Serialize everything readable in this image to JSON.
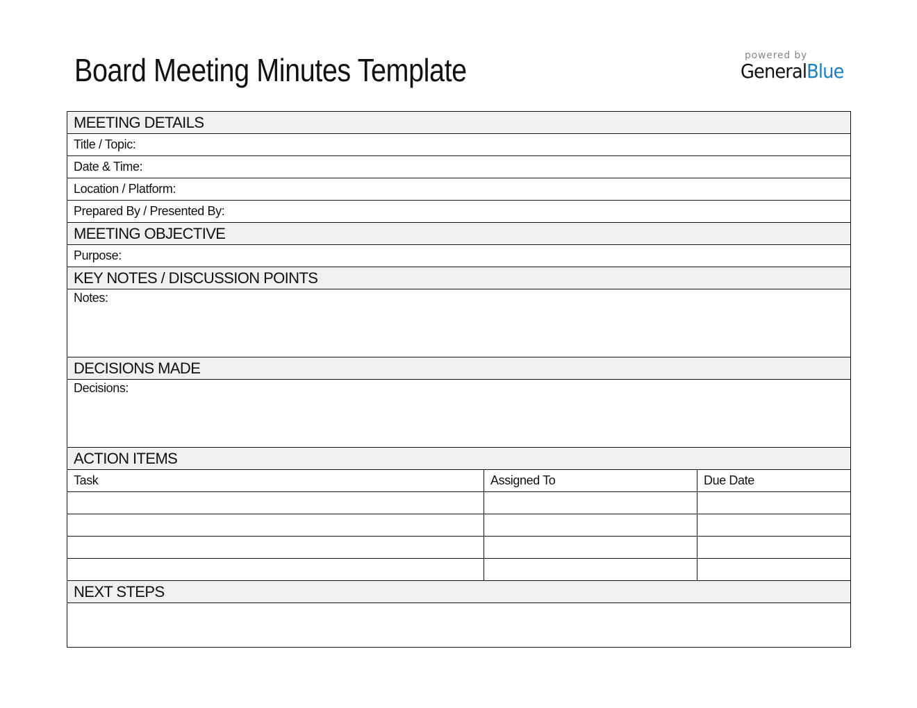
{
  "title": "Board Meeting Minutes Template",
  "logo": {
    "powered": "powered by",
    "general": "General",
    "blue": "Blue",
    "accent": "#1a7fc9"
  },
  "details": {
    "header": "MEETING DETAILS",
    "title": "Title / Topic:",
    "date": "Date & Time:",
    "location": "Location / Platform:",
    "prepared": "Prepared By / Presented By:"
  },
  "objective": {
    "header": "MEETING OBJECTIVE",
    "purpose": "Purpose:"
  },
  "notes": {
    "header": "KEY NOTES / DISCUSSION POINTS",
    "label": "Notes:"
  },
  "decisions": {
    "header": "DECISIONS MADE",
    "label": "Decisions:"
  },
  "actions": {
    "header": "ACTION ITEMS",
    "columns": [
      "Task",
      "Assigned To",
      "Due Date"
    ]
  },
  "next": {
    "header": "NEXT STEPS"
  }
}
